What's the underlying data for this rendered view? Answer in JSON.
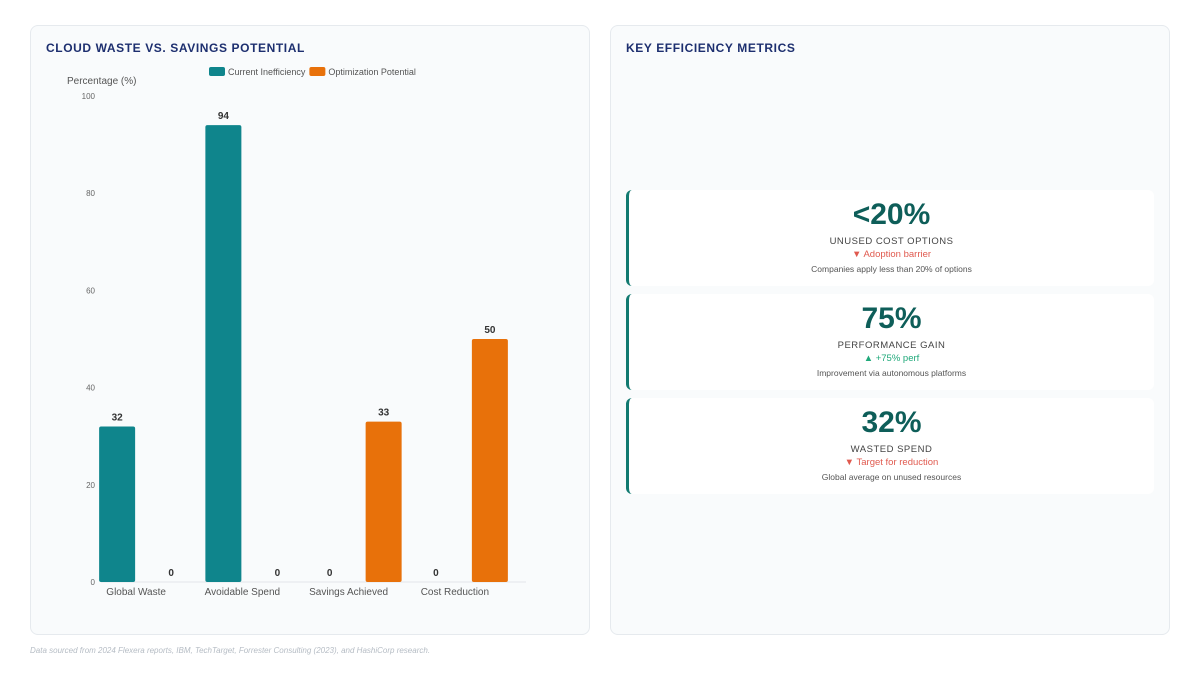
{
  "chart_panel": {
    "title": "CLOUD WASTE VS. SAVINGS POTENTIAL"
  },
  "chart_data": {
    "type": "bar",
    "ylabel": "Percentage (%)",
    "xlabel": "",
    "ylim": [
      0,
      100
    ],
    "yticks": [
      0,
      20,
      40,
      60,
      80,
      100
    ],
    "grid": false,
    "legend_position": "top",
    "categories": [
      "Global Waste",
      "Avoidable Spend",
      "Savings Achieved",
      "Cost Reduction"
    ],
    "series": [
      {
        "name": "Current Inefficiency",
        "color": "#0f858c",
        "values": [
          32,
          94,
          0,
          0
        ]
      },
      {
        "name": "Optimization Potential",
        "color": "#e8710a",
        "values": [
          0,
          0,
          33,
          50
        ]
      }
    ]
  },
  "metrics_panel": {
    "title": "KEY EFFICIENCY METRICS",
    "cards": [
      {
        "value": "<20%",
        "label": "UNUSED COST OPTIONS",
        "trend": "▼ Adoption barrier",
        "trend_color": "#e05a4f",
        "desc": "Companies apply less than 20% of options"
      },
      {
        "value": "75%",
        "label": "PERFORMANCE GAIN",
        "trend": "▲ +75% perf",
        "trend_color": "#1fa97a",
        "desc": "Improvement via autonomous platforms"
      },
      {
        "value": "32%",
        "label": "WASTED SPEND",
        "trend": "▼ Target for reduction",
        "trend_color": "#e05a4f",
        "desc": "Global average on unused resources"
      }
    ]
  },
  "footer": {
    "note": "Data sourced from 2024 Flexera reports, IBM, TechTarget, Forrester Consulting (2023), and HashiCorp research."
  }
}
